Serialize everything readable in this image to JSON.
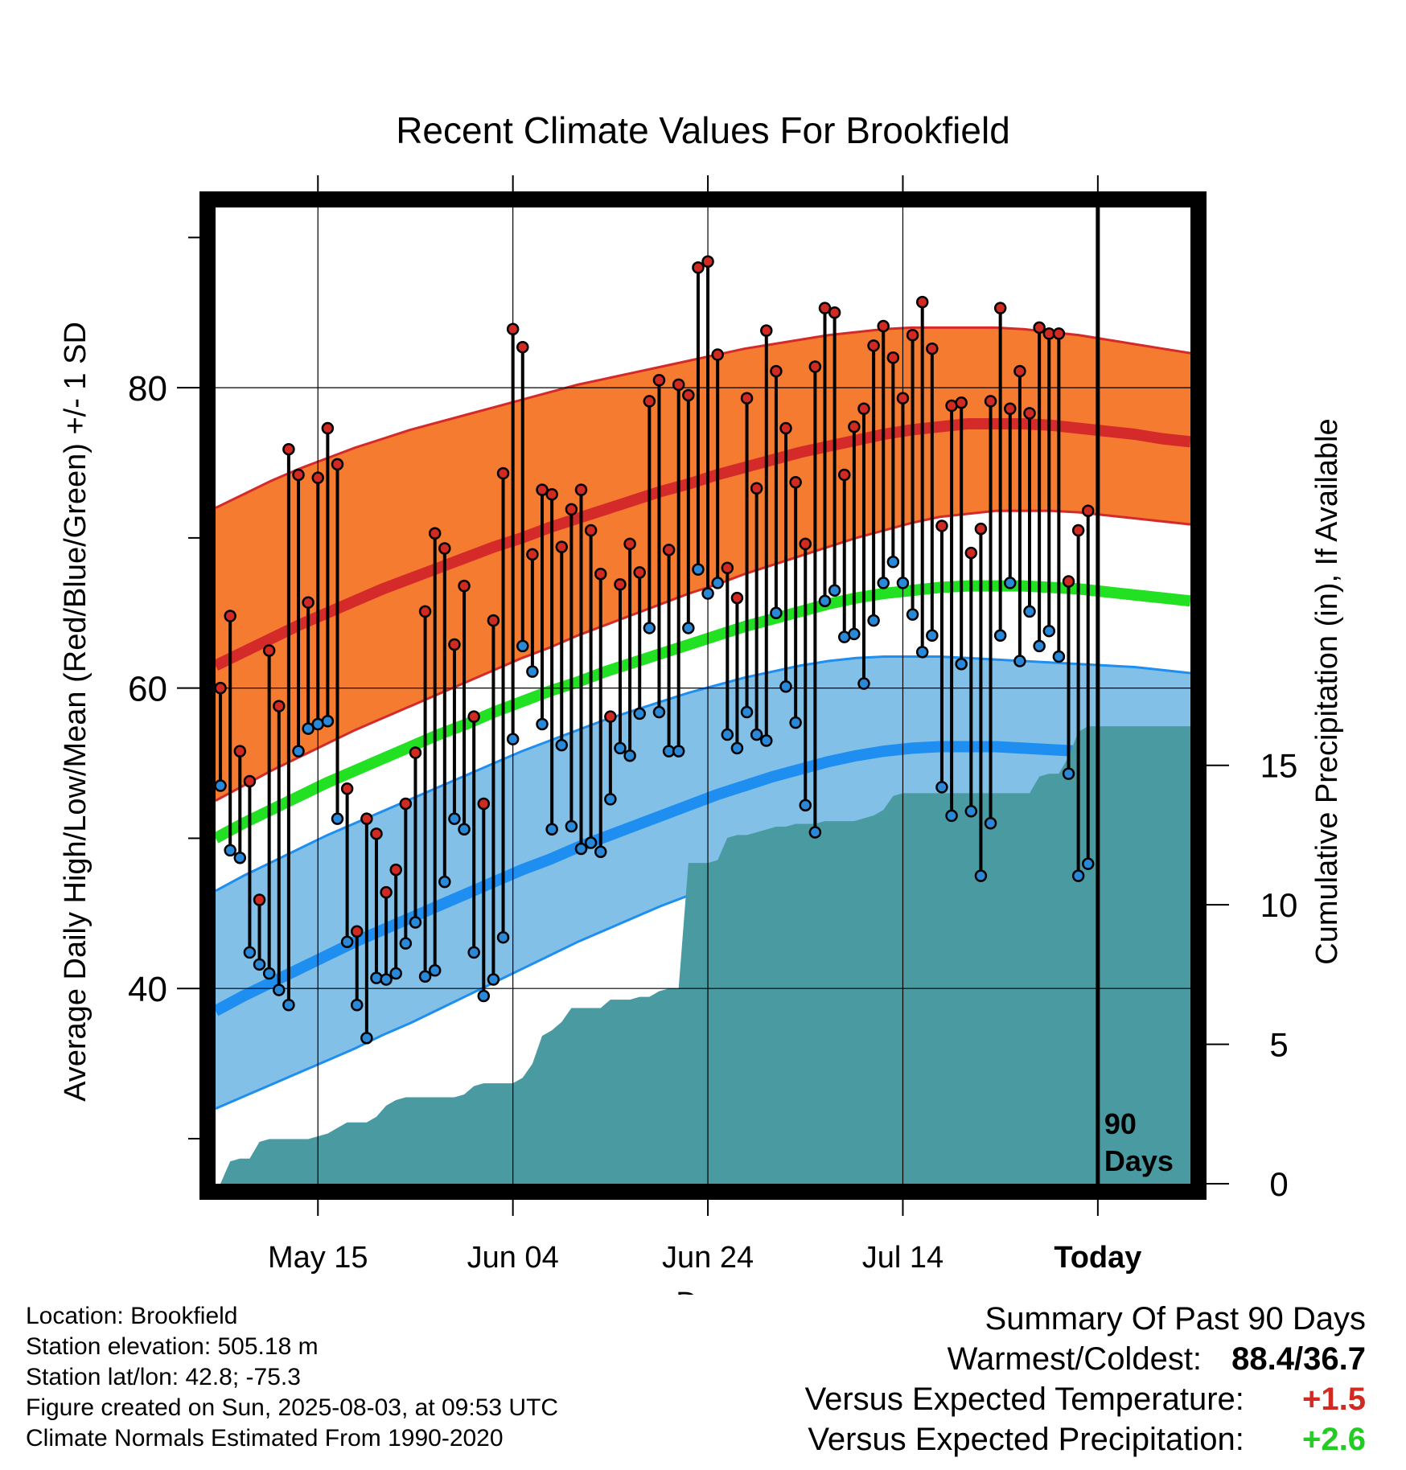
{
  "title": "Recent Climate Values For Brookfield",
  "colors": {
    "high_band": "#f47b30",
    "high_line": "#d42a2a",
    "low_band": "#82c0e8",
    "low_line": "#1e8ef0",
    "mean_line": "#22e022",
    "precip_fill": "#4a9aa2",
    "high_marker": "#d02a22",
    "low_marker": "#2a88d8",
    "warm_value": "#d02a22",
    "precip_value": "#22cc22"
  },
  "chart_data": {
    "type": "line",
    "title": "Recent Climate Values For Brookfield",
    "xlabel": "Day",
    "ylabel": "Average Daily High/Low/Mean (Red/Blue/Green) +/- 1 SD",
    "y2label": "Cumulative Precipitation (in), If Available",
    "x_tick_labels": [
      "May 15",
      "Jun 04",
      "Jun 24",
      "Jul 14",
      "Today"
    ],
    "x_tick_days": [
      10,
      30,
      50,
      70,
      90
    ],
    "xlim": [
      -0.5,
      99.5
    ],
    "ylim": [
      27,
      92
    ],
    "y_ticks": [
      40,
      60,
      80
    ],
    "y_minor_ticks": [
      30,
      50,
      70,
      90
    ],
    "y2lim": [
      0,
      35
    ],
    "y2_ticks": [
      0,
      5,
      10,
      15
    ],
    "today_day": 90,
    "today_label": [
      "90",
      "Days"
    ],
    "days": [
      0,
      1,
      2,
      3,
      4,
      5,
      6,
      7,
      8,
      9,
      10,
      11,
      12,
      13,
      14,
      15,
      16,
      17,
      18,
      19,
      20,
      21,
      22,
      23,
      24,
      25,
      26,
      27,
      28,
      29,
      30,
      31,
      32,
      33,
      34,
      35,
      36,
      37,
      38,
      39,
      40,
      41,
      42,
      43,
      44,
      45,
      46,
      47,
      48,
      49,
      50,
      51,
      52,
      53,
      54,
      55,
      56,
      57,
      58,
      59,
      60,
      61,
      62,
      63,
      64,
      65,
      66,
      67,
      68,
      69,
      70,
      71,
      72,
      73,
      74,
      75,
      76,
      77,
      78,
      79,
      80,
      81,
      82,
      83,
      84,
      85,
      86,
      87,
      88,
      89
    ],
    "series": [
      {
        "name": "Daily High",
        "values": [
          60,
          64.8,
          55.8,
          53.8,
          45.9,
          62.5,
          58.8,
          75.9,
          74.2,
          65.7,
          74.0,
          77.3,
          74.9,
          53.3,
          43.8,
          51.3,
          50.3,
          46.4,
          47.9,
          52.3,
          55.7,
          65.1,
          70.3,
          69.3,
          62.9,
          66.8,
          58.1,
          52.3,
          64.5,
          74.3,
          83.9,
          82.7,
          68.9,
          73.2,
          72.9,
          69.4,
          71.9,
          73.2,
          70.5,
          67.6,
          58.1,
          66.9,
          69.6,
          67.7,
          79.1,
          80.5,
          69.2,
          80.2,
          79.5,
          88.0,
          88.4,
          82.2,
          68.0,
          66.0,
          79.3,
          73.3,
          83.8,
          81.1,
          77.3,
          73.7,
          69.6,
          81.4,
          85.3,
          85.0,
          74.2,
          77.4,
          78.6,
          82.8,
          84.1,
          82.0,
          79.3,
          83.5,
          85.7,
          82.6,
          70.8,
          78.8,
          79.0,
          69.0,
          70.6,
          79.1,
          85.3,
          78.6,
          81.1,
          78.3,
          84.0,
          83.6,
          83.6,
          67.1,
          70.5,
          71.8
        ]
      },
      {
        "name": "Daily Low",
        "values": [
          53.5,
          49.2,
          48.7,
          42.4,
          41.6,
          41.0,
          39.9,
          38.9,
          55.8,
          57.3,
          57.6,
          57.8,
          51.3,
          43.1,
          38.9,
          36.7,
          40.7,
          40.6,
          41.0,
          43.0,
          44.4,
          40.8,
          41.2,
          47.1,
          51.3,
          50.6,
          42.4,
          39.5,
          40.6,
          43.4,
          56.6,
          62.8,
          61.1,
          57.6,
          50.6,
          56.2,
          50.8,
          49.3,
          49.7,
          49.1,
          52.6,
          56.0,
          55.5,
          58.3,
          64.0,
          58.4,
          55.8,
          55.8,
          64.0,
          67.9,
          66.3,
          67.0,
          56.9,
          56.0,
          58.4,
          56.9,
          56.5,
          65.0,
          60.1,
          57.7,
          52.2,
          50.4,
          65.8,
          66.5,
          63.4,
          63.6,
          60.3,
          64.5,
          67.0,
          68.4,
          67.0,
          64.9,
          62.4,
          63.5,
          53.4,
          51.5,
          61.6,
          51.8,
          47.5,
          51.0,
          63.5,
          67.0,
          61.8,
          65.1,
          62.8,
          63.8,
          62.1,
          54.3,
          47.5,
          48.3
        ]
      },
      {
        "name": "Normal High",
        "values": [
          61.5,
          62.4,
          63.3,
          64.2,
          65.0,
          65.8,
          66.6,
          67.3,
          68.0,
          68.7,
          69.4,
          70.0,
          70.7,
          71.3,
          71.9,
          72.5,
          73.1,
          73.6,
          74.2,
          74.7,
          75.2,
          75.7,
          76.1,
          76.5,
          76.9,
          77.2,
          77.4,
          77.6,
          77.6,
          77.6,
          77.5,
          77.3,
          77.1,
          76.9,
          76.6,
          76.4
        ]
      },
      {
        "name": "Normal Low",
        "values": [
          38.5,
          39.5,
          40.4,
          41.3,
          42.2,
          43.1,
          43.9,
          44.7,
          45.5,
          46.3,
          47.1,
          47.9,
          48.6,
          49.4,
          50.1,
          50.8,
          51.5,
          52.2,
          52.9,
          53.5,
          54.1,
          54.6,
          55.1,
          55.5,
          55.8,
          56.0,
          56.1,
          56.1,
          56.1,
          56.0,
          55.9,
          55.8,
          55.6,
          55.4,
          55.2,
          55.0
        ]
      },
      {
        "name": "Normal Mean",
        "values": [
          50.0,
          51.0,
          51.9,
          52.8,
          53.7,
          54.5,
          55.3,
          56.1,
          56.9,
          57.6,
          58.4,
          59.1,
          59.8,
          60.4,
          61.1,
          61.7,
          62.3,
          62.9,
          63.5,
          64.1,
          64.6,
          65.1,
          65.6,
          66.0,
          66.3,
          66.5,
          66.7,
          66.8,
          66.8,
          66.8,
          66.7,
          66.6,
          66.4,
          66.2,
          66.0,
          65.8
        ]
      },
      {
        "name": "Normal High + 1 SD",
        "values": [
          72.0,
          72.9,
          73.8,
          74.6,
          75.3,
          76.0,
          76.6,
          77.2,
          77.7,
          78.2,
          78.7,
          79.2,
          79.7,
          80.2,
          80.6,
          81.0,
          81.4,
          81.8,
          82.2,
          82.6,
          82.9,
          83.2,
          83.5,
          83.7,
          83.9,
          84.0,
          84.0,
          84.0,
          84.0,
          83.9,
          83.7,
          83.5,
          83.2,
          82.9,
          82.6,
          82.3
        ]
      },
      {
        "name": "Normal High - 1 SD",
        "values": [
          52.5,
          53.5,
          54.5,
          55.4,
          56.3,
          57.2,
          58.0,
          58.8,
          59.6,
          60.4,
          61.2,
          62.0,
          62.7,
          63.5,
          64.2,
          64.9,
          65.6,
          66.3,
          66.9,
          67.6,
          68.2,
          68.8,
          69.4,
          70.0,
          70.5,
          71.0,
          71.4,
          71.6,
          71.8,
          71.8,
          71.8,
          71.7,
          71.5,
          71.3,
          71.1,
          70.9
        ]
      },
      {
        "name": "Normal Low + 1 SD",
        "values": [
          46.5,
          47.5,
          48.4,
          49.3,
          50.2,
          51.0,
          51.8,
          52.6,
          53.4,
          54.2,
          55.0,
          55.8,
          56.5,
          57.2,
          57.9,
          58.5,
          59.1,
          59.7,
          60.2,
          60.7,
          61.1,
          61.5,
          61.8,
          62.0,
          62.1,
          62.1,
          62.1,
          62.0,
          61.9,
          61.8,
          61.7,
          61.6,
          61.5,
          61.4,
          61.2,
          61.0
        ]
      },
      {
        "name": "Normal Low - 1 SD",
        "values": [
          32.0,
          32.8,
          33.6,
          34.4,
          35.2,
          36.0,
          36.9,
          37.7,
          38.6,
          39.5,
          40.4,
          41.3,
          42.2,
          43.1,
          43.9,
          44.7,
          45.5,
          46.2,
          46.9,
          47.6,
          48.2,
          48.8,
          49.3,
          49.8,
          50.2,
          50.5,
          50.6,
          50.7,
          50.7,
          50.7,
          50.6,
          50.5,
          50.3,
          50.1,
          49.8,
          49.5
        ]
      },
      {
        "name": "Cumulative Precipitation",
        "values": [
          0,
          0.8,
          0.9,
          0.9,
          1.5,
          1.6,
          1.6,
          1.6,
          1.6,
          1.6,
          1.7,
          1.8,
          2.0,
          2.2,
          2.2,
          2.2,
          2.4,
          2.8,
          3.0,
          3.1,
          3.1,
          3.1,
          3.1,
          3.1,
          3.1,
          3.2,
          3.5,
          3.6,
          3.6,
          3.6,
          3.6,
          3.8,
          4.3,
          5.3,
          5.5,
          5.8,
          6.3,
          6.3,
          6.3,
          6.3,
          6.6,
          6.6,
          6.6,
          6.7,
          6.7,
          6.9,
          7.0,
          7.0,
          11.5,
          11.5,
          11.5,
          11.6,
          12.4,
          12.5,
          12.5,
          12.6,
          12.7,
          12.8,
          12.8,
          12.9,
          12.9,
          12.9,
          13.0,
          13.0,
          13.0,
          13.0,
          13.1,
          13.2,
          13.4,
          13.9,
          14.0,
          14.0,
          14.0,
          14.0,
          14.0,
          14.0,
          14.0,
          14.0,
          14.0,
          14.0,
          14.0,
          14.0,
          14.0,
          14.0,
          14.6,
          14.7,
          14.7,
          15.3,
          16.2,
          16.4
        ]
      }
    ]
  },
  "info": {
    "location": "Location: Brookfield",
    "elevation": "Station elevation: 505.18 m",
    "latlon": "Station lat/lon: 42.8; -75.3",
    "created": "Figure created on Sun, 2025-08-03, at 09:53 UTC",
    "normals": "Climate Normals Estimated From 1990-2020"
  },
  "summary": {
    "heading": "Summary Of Past 90 Days",
    "warm_cold_label": "Warmest/Coldest:",
    "warm_cold_value": "88.4/36.7",
    "temp_label": "Versus Expected Temperature:",
    "temp_value": "+1.5",
    "precip_label": "Versus Expected Precipitation:",
    "precip_value": "+2.6"
  }
}
